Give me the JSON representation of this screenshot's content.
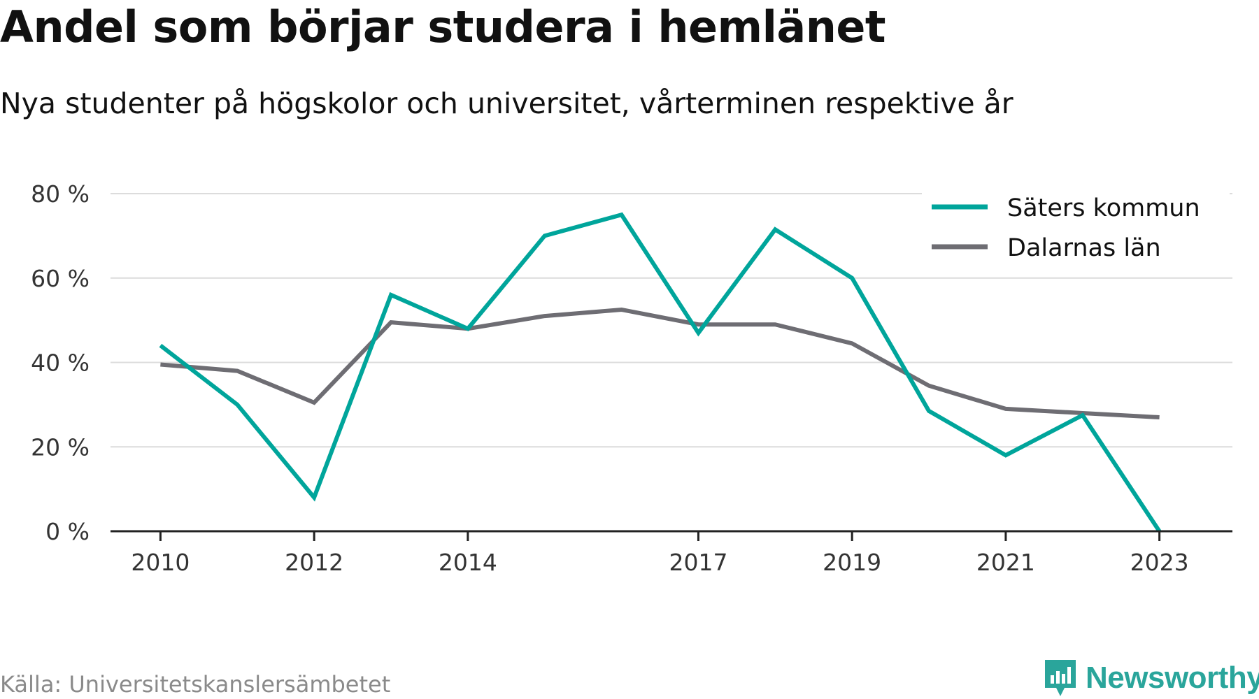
{
  "header": {
    "title": "Andel som börjar studera i hemlänet",
    "subtitle": "Nya studenter på högskolor och universitet, vårterminen respektive år"
  },
  "footer": {
    "source": "Källa: Universitetskanslersämbetet",
    "brand": "Newsworthy",
    "brand_icon": "newsworthy-logo-icon",
    "brand_color": "#2aa59b"
  },
  "chart_data": {
    "type": "line",
    "x": [
      2010,
      2011,
      2012,
      2013,
      2014,
      2015,
      2016,
      2017,
      2018,
      2019,
      2020,
      2021,
      2022,
      2023
    ],
    "x_tick_labels": [
      "2010",
      "2012",
      "2014",
      "2017",
      "2019",
      "2021",
      "2023"
    ],
    "y_tick_labels": [
      "0 %",
      "20 %",
      "40 %",
      "60 %",
      "80 %"
    ],
    "ylim": [
      0,
      80
    ],
    "y_ticks": [
      0,
      20,
      40,
      60,
      80
    ],
    "grid": true,
    "legend_position": "top-right",
    "series": [
      {
        "name": "Säters kommun",
        "color": "#00a59b",
        "values": [
          44,
          30,
          8,
          56,
          48,
          70,
          75,
          47,
          71.5,
          60,
          28.5,
          18,
          27.5,
          0
        ]
      },
      {
        "name": "Dalarnas län",
        "color": "#6e6d73",
        "values": [
          39.5,
          38,
          30.5,
          49.5,
          48,
          51,
          52.5,
          49,
          49,
          44.5,
          34.5,
          29,
          28,
          27
        ]
      }
    ]
  }
}
